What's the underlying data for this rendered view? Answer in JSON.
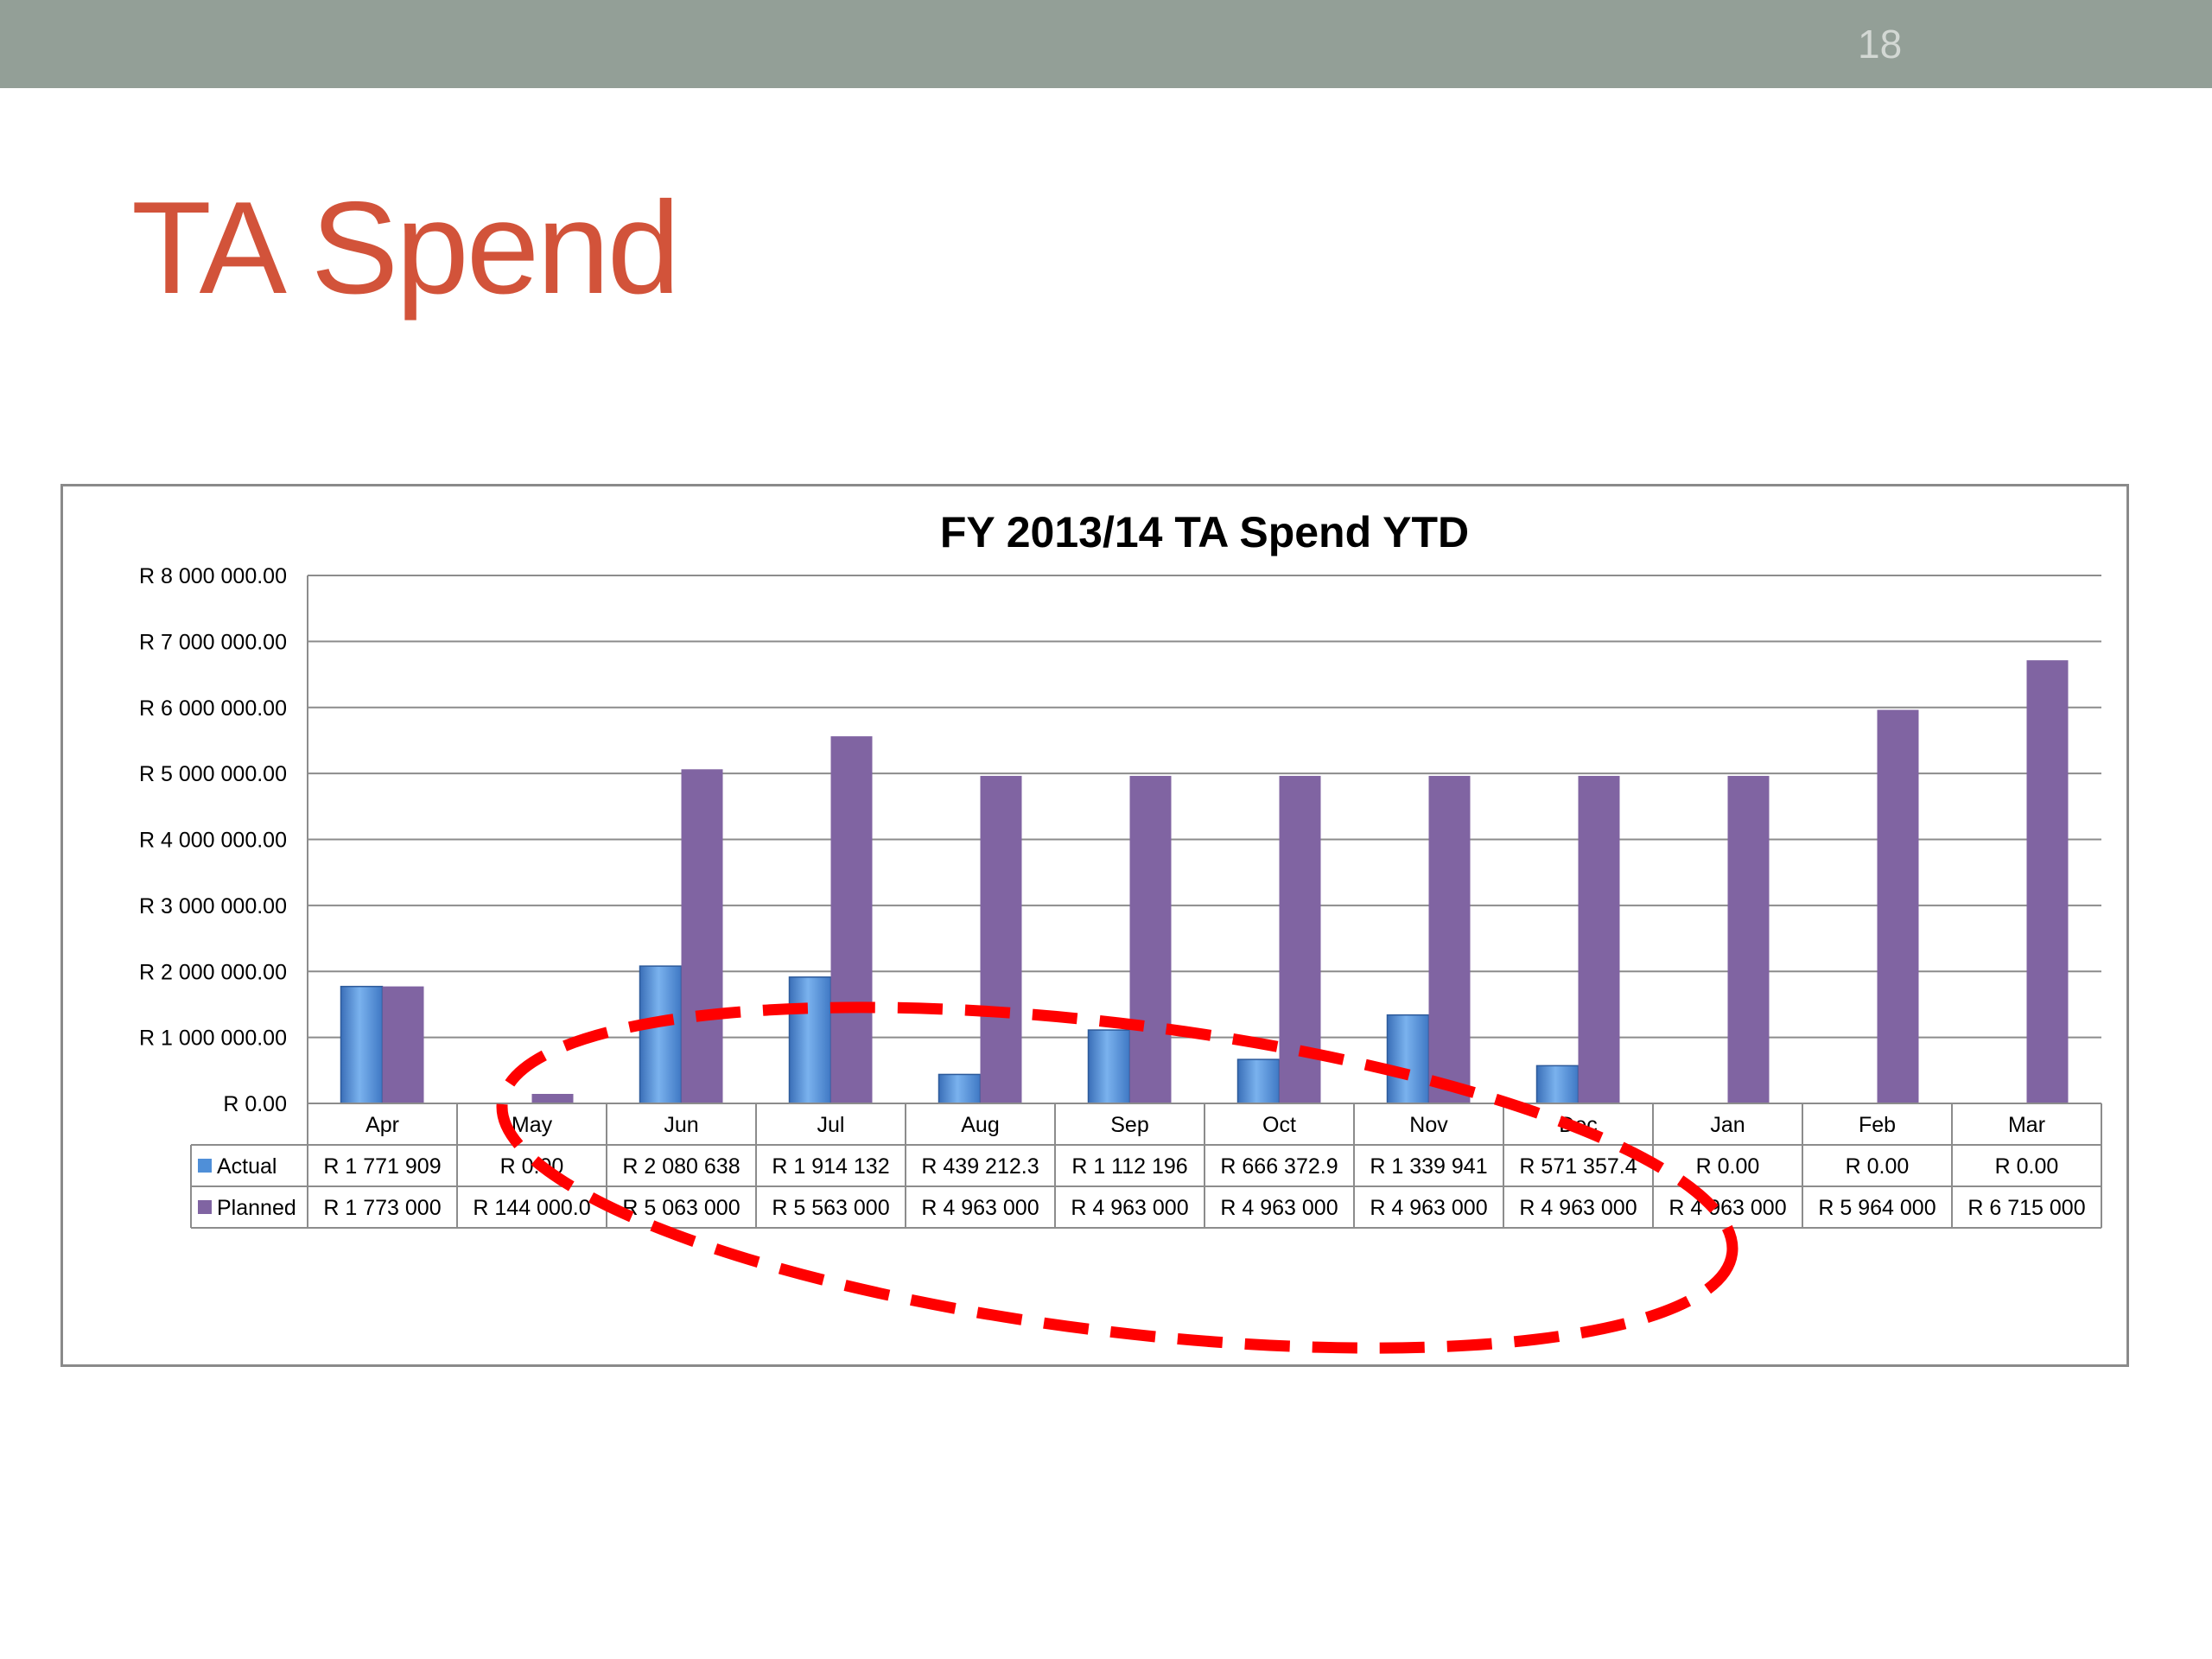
{
  "slide": {
    "number": "18",
    "title": "TA Spend"
  },
  "colors": {
    "actual": "#4f8fd8",
    "planned": "#8064a2",
    "highlight": "#ff0000",
    "title": "#d2533a",
    "top_bar": "#939f97"
  },
  "chart_data": {
    "type": "bar",
    "title": "FY 2013/14 TA Spend YTD",
    "xlabel": "",
    "ylabel": "",
    "ylim": [
      0,
      8000000
    ],
    "yticks": [
      0,
      1000000,
      2000000,
      3000000,
      4000000,
      5000000,
      6000000,
      7000000,
      8000000
    ],
    "ytick_labels": [
      "R 0.00",
      "R 1 000 000.00",
      "R 2 000 000.00",
      "R 3 000 000.00",
      "R 4 000 000.00",
      "R 5 000 000.00",
      "R 6 000 000.00",
      "R 7 000 000.00",
      "R 8 000 000.00"
    ],
    "categories": [
      "Apr",
      "May",
      "Jun",
      "Jul",
      "Aug",
      "Sep",
      "Oct",
      "Nov",
      "Dec",
      "Jan",
      "Feb",
      "Mar"
    ],
    "grid": true,
    "legend": "data-table",
    "series": [
      {
        "name": "Actual",
        "values": [
          1771909,
          0,
          2080638,
          1914132,
          439212,
          1112196,
          666372.9,
          1339941,
          571357.4,
          0,
          0,
          0
        ],
        "labels": [
          "R 1 771 909",
          "R 0.00",
          "R 2 080 638",
          "R 1 914 132",
          "R 439 212.3",
          "R 1 112 196",
          "R 666 372.9",
          "R 1 339 941",
          "R 571 357.4",
          "R 0.00",
          "R 0.00",
          "R 0.00"
        ]
      },
      {
        "name": "Planned",
        "values": [
          1773000,
          144000,
          5063000,
          5563000,
          4963000,
          4963000,
          4963000,
          4963000,
          4963000,
          4963000,
          5964000,
          6715000
        ],
        "labels": [
          "R 1 773 000",
          "R 144 000.0",
          "R 5 063 000",
          "R 5 563 000",
          "R 4 963 000",
          "R 4 963 000",
          "R 4 963 000",
          "R 4 963 000",
          "R 4 963 000",
          "R 4 963 000",
          "R 5 964 000",
          "R 6 715 000"
        ]
      }
    ]
  }
}
